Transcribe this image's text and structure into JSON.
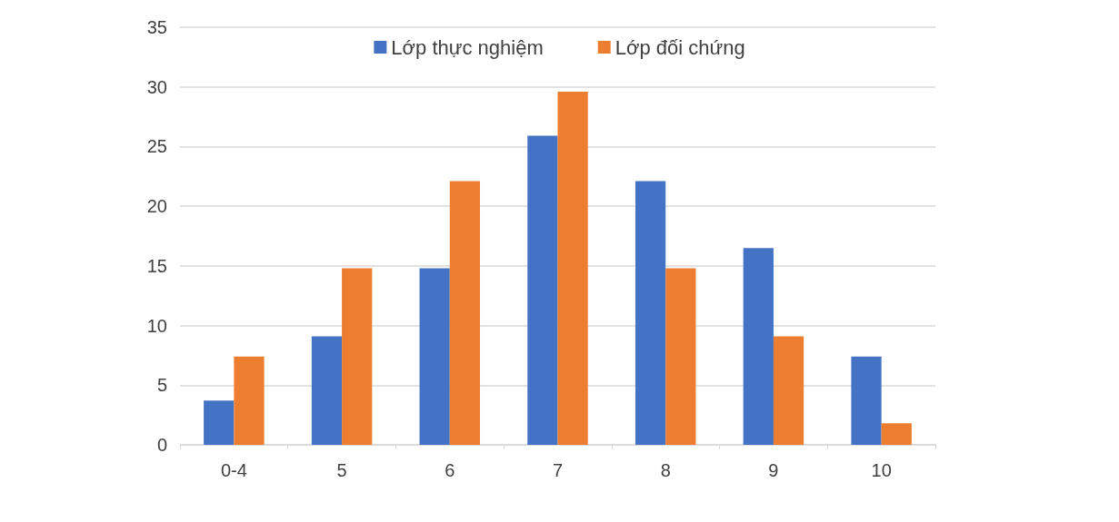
{
  "chart_data": {
    "type": "bar",
    "categories": [
      "0-4",
      "5",
      "6",
      "7",
      "8",
      "9",
      "10"
    ],
    "series": [
      {
        "name": "Lớp thực nghiệm",
        "color": "#4472c4",
        "values": [
          3.7,
          9.1,
          14.8,
          25.9,
          22.1,
          16.5,
          7.4
        ]
      },
      {
        "name": "Lớp đối chứng",
        "color": "#ed7d31",
        "values": [
          7.4,
          14.8,
          22.1,
          29.6,
          14.8,
          9.1,
          1.8
        ]
      }
    ],
    "ylim": [
      0,
      35
    ],
    "yticks": [
      0,
      5,
      10,
      15,
      20,
      25,
      30,
      35
    ],
    "grid": "y",
    "legend": "top"
  }
}
